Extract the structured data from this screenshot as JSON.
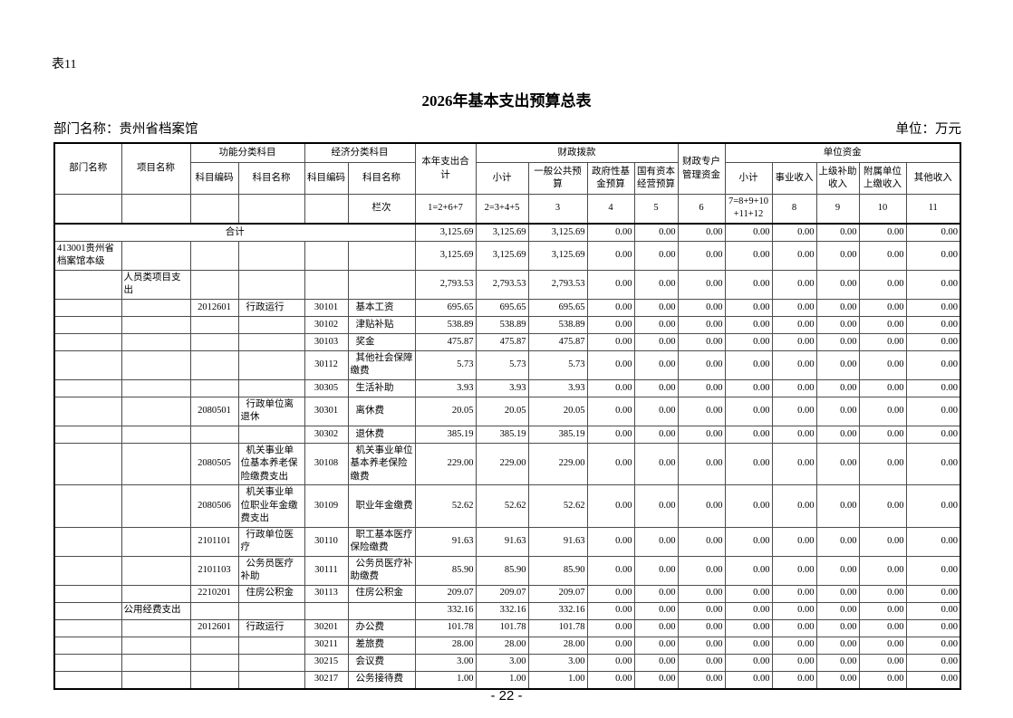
{
  "page": {
    "table_label": "表11",
    "title": "2026年基本支出预算总表",
    "department_label": "部门名称：贵州省档案馆",
    "unit_label": "单位：万元",
    "page_number": "- 22 -"
  },
  "table": {
    "header": {
      "dept": "部门名称",
      "project": "项目名称",
      "func_group": "功能分类科目",
      "econ_group": "经济分类科目",
      "code": "科目编码",
      "name": "科目名称",
      "total": "本年支出合计",
      "fiscal_group": "财政拨款",
      "subtotal": "小计",
      "general_budget": "一般公共预算",
      "gov_fund": "政府性基金预算",
      "state_capital": "国有资本经营预算",
      "special_account": "财政专户管理资金",
      "unit_funds_group": "单位资金",
      "unit_subtotal": "小计",
      "business_income": "事业收入",
      "superior_subsidy": "上级补助收入",
      "affiliate_income": "附属单位上缴收入",
      "other_income": "其他收入",
      "lanci": "栏次",
      "col_formulas": [
        "1=2+6+7",
        "2=3+4+5",
        "3",
        "4",
        "5",
        "6",
        "7=8+9+10+11+12",
        "8",
        "9",
        "10",
        "11"
      ]
    },
    "rows": [
      {
        "merge": 6,
        "label": "合计",
        "cells": [
          "3,125.69",
          "3,125.69",
          "3,125.69",
          "0.00",
          "0.00",
          "0.00",
          "0.00",
          "0.00",
          "0.00",
          "0.00",
          "0.00"
        ]
      },
      {
        "cells": [
          "413001贵州省档案馆本级",
          "",
          "",
          "",
          "",
          "",
          "3,125.69",
          "3,125.69",
          "3,125.69",
          "0.00",
          "0.00",
          "0.00",
          "0.00",
          "0.00",
          "0.00",
          "0.00",
          "0.00"
        ]
      },
      {
        "cells": [
          "",
          "人员类项目支出",
          "",
          "",
          "",
          "",
          "2,793.53",
          "2,793.53",
          "2,793.53",
          "0.00",
          "0.00",
          "0.00",
          "0.00",
          "0.00",
          "0.00",
          "0.00",
          "0.00"
        ]
      },
      {
        "cells": [
          "",
          "",
          "2012601",
          "行政运行",
          "30101",
          "基本工资",
          "695.65",
          "695.65",
          "695.65",
          "0.00",
          "0.00",
          "0.00",
          "0.00",
          "0.00",
          "0.00",
          "0.00",
          "0.00"
        ]
      },
      {
        "cells": [
          "",
          "",
          "",
          "",
          "30102",
          "津贴补贴",
          "538.89",
          "538.89",
          "538.89",
          "0.00",
          "0.00",
          "0.00",
          "0.00",
          "0.00",
          "0.00",
          "0.00",
          "0.00"
        ]
      },
      {
        "cells": [
          "",
          "",
          "",
          "",
          "30103",
          "奖金",
          "475.87",
          "475.87",
          "475.87",
          "0.00",
          "0.00",
          "0.00",
          "0.00",
          "0.00",
          "0.00",
          "0.00",
          "0.00"
        ]
      },
      {
        "cells": [
          "",
          "",
          "",
          "",
          "30112",
          "其他社会保障缴费",
          "5.73",
          "5.73",
          "5.73",
          "0.00",
          "0.00",
          "0.00",
          "0.00",
          "0.00",
          "0.00",
          "0.00",
          "0.00"
        ]
      },
      {
        "cells": [
          "",
          "",
          "",
          "",
          "30305",
          "生活补助",
          "3.93",
          "3.93",
          "3.93",
          "0.00",
          "0.00",
          "0.00",
          "0.00",
          "0.00",
          "0.00",
          "0.00",
          "0.00"
        ]
      },
      {
        "cells": [
          "",
          "",
          "2080501",
          "行政单位离退休",
          "30301",
          "离休费",
          "20.05",
          "20.05",
          "20.05",
          "0.00",
          "0.00",
          "0.00",
          "0.00",
          "0.00",
          "0.00",
          "0.00",
          "0.00"
        ]
      },
      {
        "cells": [
          "",
          "",
          "",
          "",
          "30302",
          "退休费",
          "385.19",
          "385.19",
          "385.19",
          "0.00",
          "0.00",
          "0.00",
          "0.00",
          "0.00",
          "0.00",
          "0.00",
          "0.00"
        ]
      },
      {
        "cells": [
          "",
          "",
          "2080505",
          "机关事业单位基本养老保险缴费支出",
          "30108",
          "机关事业单位基本养老保险缴费",
          "229.00",
          "229.00",
          "229.00",
          "0.00",
          "0.00",
          "0.00",
          "0.00",
          "0.00",
          "0.00",
          "0.00",
          "0.00"
        ]
      },
      {
        "cells": [
          "",
          "",
          "2080506",
          "机关事业单位职业年金缴费支出",
          "30109",
          "职业年金缴费",
          "52.62",
          "52.62",
          "52.62",
          "0.00",
          "0.00",
          "0.00",
          "0.00",
          "0.00",
          "0.00",
          "0.00",
          "0.00"
        ]
      },
      {
        "cells": [
          "",
          "",
          "2101101",
          "行政单位医疗",
          "30110",
          "职工基本医疗保险缴费",
          "91.63",
          "91.63",
          "91.63",
          "0.00",
          "0.00",
          "0.00",
          "0.00",
          "0.00",
          "0.00",
          "0.00",
          "0.00"
        ]
      },
      {
        "cells": [
          "",
          "",
          "2101103",
          "公务员医疗补助",
          "30111",
          "公务员医疗补助缴费",
          "85.90",
          "85.90",
          "85.90",
          "0.00",
          "0.00",
          "0.00",
          "0.00",
          "0.00",
          "0.00",
          "0.00",
          "0.00"
        ]
      },
      {
        "cells": [
          "",
          "",
          "2210201",
          "住房公积金",
          "30113",
          "住房公积金",
          "209.07",
          "209.07",
          "209.07",
          "0.00",
          "0.00",
          "0.00",
          "0.00",
          "0.00",
          "0.00",
          "0.00",
          "0.00"
        ]
      },
      {
        "cells": [
          "",
          "公用经费支出",
          "",
          "",
          "",
          "",
          "332.16",
          "332.16",
          "332.16",
          "0.00",
          "0.00",
          "0.00",
          "0.00",
          "0.00",
          "0.00",
          "0.00",
          "0.00"
        ]
      },
      {
        "cells": [
          "",
          "",
          "2012601",
          "行政运行",
          "30201",
          "办公费",
          "101.78",
          "101.78",
          "101.78",
          "0.00",
          "0.00",
          "0.00",
          "0.00",
          "0.00",
          "0.00",
          "0.00",
          "0.00"
        ]
      },
      {
        "cells": [
          "",
          "",
          "",
          "",
          "30211",
          "差旅费",
          "28.00",
          "28.00",
          "28.00",
          "0.00",
          "0.00",
          "0.00",
          "0.00",
          "0.00",
          "0.00",
          "0.00",
          "0.00"
        ]
      },
      {
        "cells": [
          "",
          "",
          "",
          "",
          "30215",
          "会议费",
          "3.00",
          "3.00",
          "3.00",
          "0.00",
          "0.00",
          "0.00",
          "0.00",
          "0.00",
          "0.00",
          "0.00",
          "0.00"
        ]
      },
      {
        "cells": [
          "",
          "",
          "",
          "",
          "30217",
          "公务接待费",
          "1.00",
          "1.00",
          "1.00",
          "0.00",
          "0.00",
          "0.00",
          "0.00",
          "0.00",
          "0.00",
          "0.00",
          "0.00"
        ]
      }
    ]
  }
}
